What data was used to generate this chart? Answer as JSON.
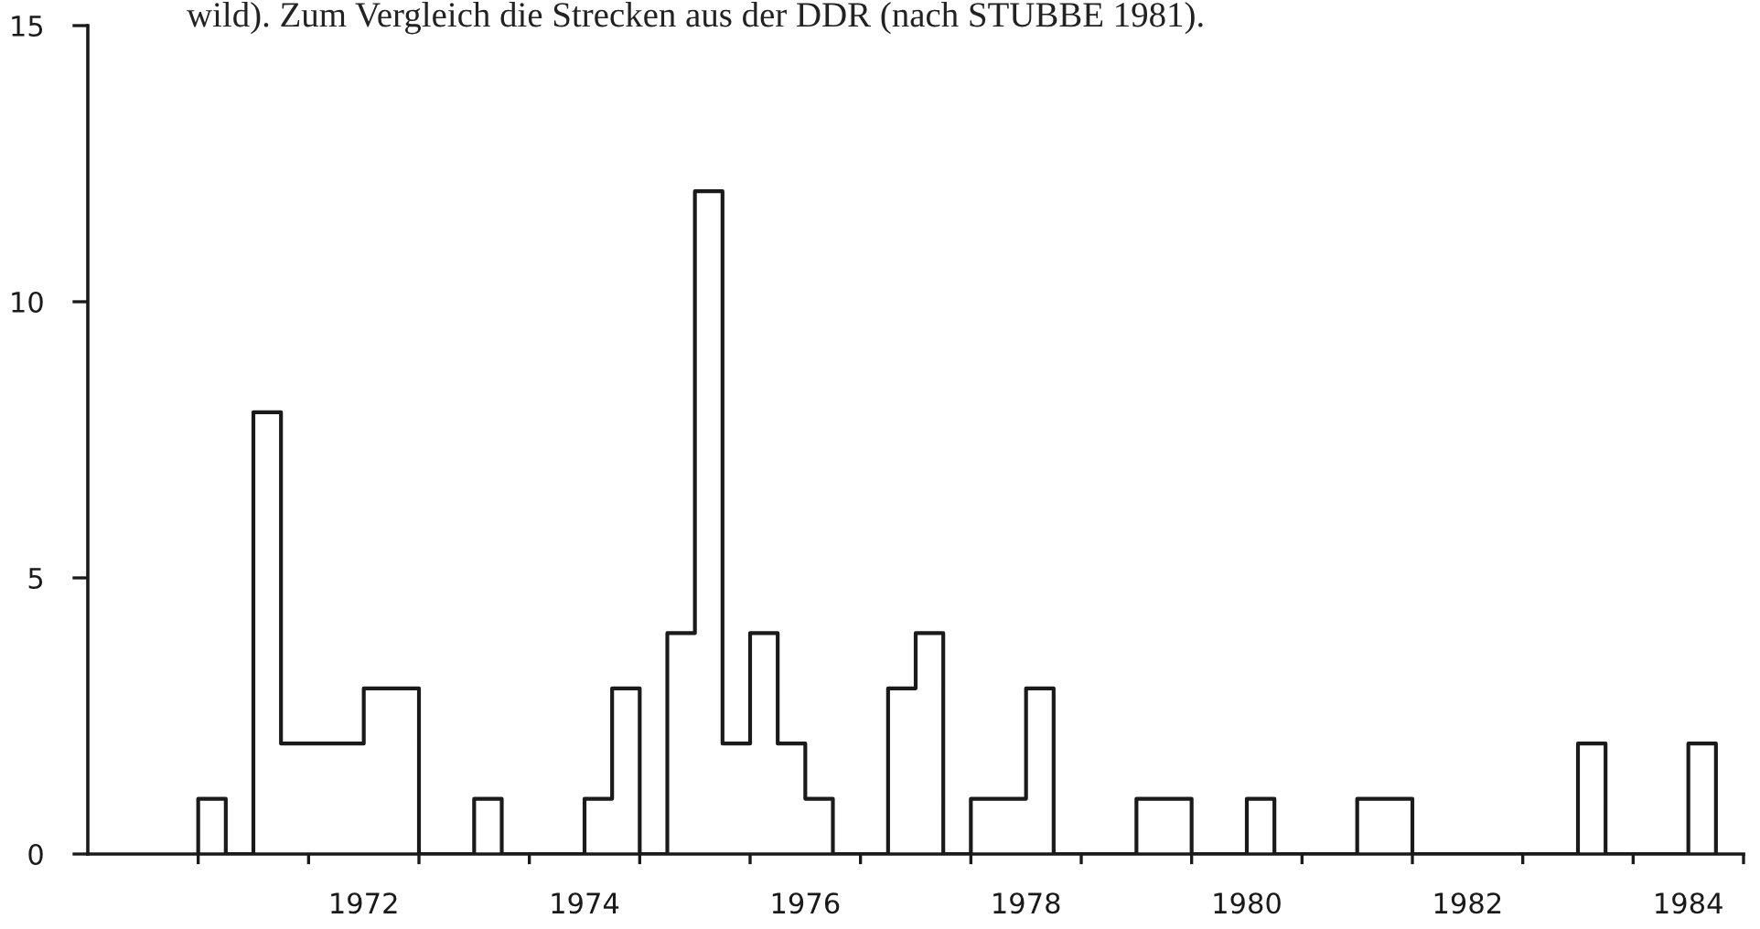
{
  "chart_data": {
    "type": "histogram",
    "annotations": [
      "wild). Zum Vergleich die Strecken aus der DDR (nach STUBBE 1981)."
    ],
    "bins": [
      1971,
      1971.25,
      1971.5,
      1971.75,
      1972,
      1972.25,
      1972.5,
      1972.75,
      1973,
      1973.25,
      1973.5,
      1973.75,
      1974,
      1974.25,
      1974.5,
      1974.75,
      1975,
      1975.25,
      1975.5,
      1975.75,
      1976,
      1976.25,
      1976.5,
      1976.75,
      1977,
      1977.25,
      1977.5,
      1977.75,
      1978,
      1978.25,
      1978.5,
      1978.75,
      1979,
      1979.25,
      1979.5,
      1979.75,
      1980,
      1980.25,
      1980.5,
      1980.75,
      1981,
      1981.25,
      1981.5,
      1981.75,
      1982,
      1982.25,
      1982.5,
      1982.75,
      1983,
      1983.25,
      1983.5,
      1983.75,
      1984,
      1984.25,
      1984.5,
      1984.75
    ],
    "values": [
      1,
      0,
      8,
      2,
      2,
      2,
      3,
      3,
      0,
      0,
      1,
      0,
      0,
      0,
      1,
      3,
      0,
      4,
      12,
      2,
      4,
      2,
      1,
      0,
      0,
      3,
      4,
      0,
      1,
      1,
      3,
      0,
      0,
      0,
      1,
      1,
      0,
      0,
      1,
      0,
      0,
      0,
      1,
      1,
      0,
      0,
      0,
      0,
      0,
      0,
      2,
      0,
      0,
      0,
      2
    ],
    "color": "#1a1a1a",
    "xlim": [
      1970,
      1985
    ],
    "xticks": [
      {
        "value": 1971,
        "label": null
      },
      {
        "value": 1972,
        "label": null
      },
      {
        "value": 1972.5,
        "label": "1972"
      },
      {
        "value": 1973,
        "label": null
      },
      {
        "value": 1974,
        "label": null
      },
      {
        "value": 1974.5,
        "label": "1974"
      },
      {
        "value": 1975,
        "label": null
      },
      {
        "value": 1976,
        "label": null
      },
      {
        "value": 1976.5,
        "label": "1976"
      },
      {
        "value": 1977,
        "label": null
      },
      {
        "value": 1978,
        "label": null
      },
      {
        "value": 1978.5,
        "label": "1978"
      },
      {
        "value": 1979,
        "label": null
      },
      {
        "value": 1980,
        "label": null
      },
      {
        "value": 1980.5,
        "label": "1980"
      },
      {
        "value": 1981,
        "label": null
      },
      {
        "value": 1982,
        "label": null
      },
      {
        "value": 1982.5,
        "label": "1982"
      },
      {
        "value": 1983,
        "label": null
      },
      {
        "value": 1984,
        "label": null
      },
      {
        "value": 1984.5,
        "label": "1984"
      },
      {
        "value": 1985,
        "label": null
      }
    ],
    "ylim": [
      0,
      15
    ],
    "yticks": [
      0,
      5,
      10,
      15
    ]
  }
}
